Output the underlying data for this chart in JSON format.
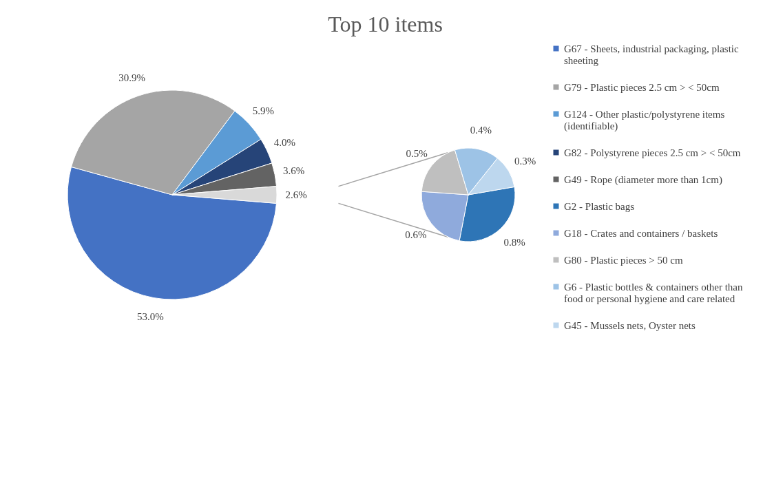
{
  "chart_data": [
    {
      "type": "pie",
      "title": "Top 10 items",
      "categories": [
        "G67 - Sheets, industrial packaging, plastic sheeting",
        "G79 - Plastic pieces 2.5 cm > < 50cm",
        "G124 - Other plastic/polystyrene items (identifiable)",
        "G82 - Polystyrene pieces 2.5 cm > < 50cm",
        "G49 - Rope (diameter more than 1cm)",
        null
      ],
      "values": [
        53.0,
        30.9,
        5.9,
        4.0,
        3.6,
        2.6
      ],
      "value_labels": [
        "53.0%",
        "30.9%",
        "5.9%",
        "4.0%",
        "3.6%",
        "2.6%"
      ],
      "colors": [
        "#4472c4",
        "#a5a5a5",
        "#5b9bd5",
        "#264478",
        "#636363",
        "#d9d9d9"
      ],
      "legend": "right"
    },
    {
      "type": "pie",
      "categories": [
        "G2 - Plastic bags",
        "G18 - Crates and containers / baskets",
        "G80 - Plastic pieces > 50 cm",
        "G6 - Plastic bottles & containers other than food or personal hygiene and care related",
        "G45 - Mussels nets, Oyster nets"
      ],
      "values": [
        0.8,
        0.6,
        0.5,
        0.4,
        0.3
      ],
      "value_labels": [
        "0.8%",
        "0.6%",
        "0.5%",
        "0.4%",
        "0.3%"
      ],
      "colors": [
        "#2e75b6",
        "#8faadc",
        "#bfbfbf",
        "#9dc3e6",
        "#bdd7ee"
      ],
      "legend": "right"
    }
  ]
}
